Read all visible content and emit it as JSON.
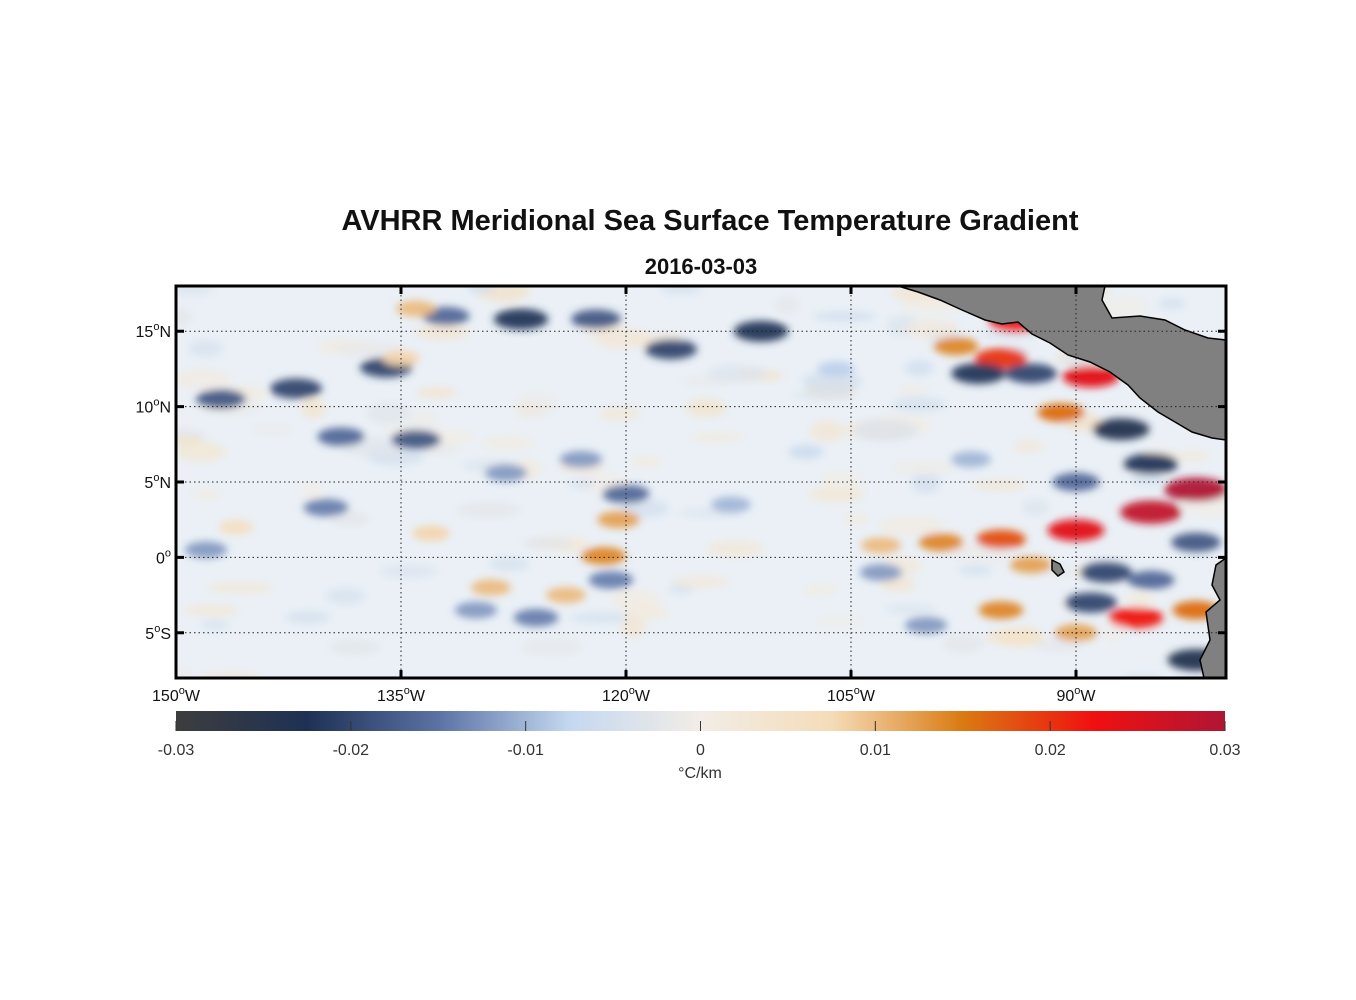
{
  "title": "AVHRR Meridional Sea Surface Temperature Gradient",
  "subtitle": "2016-03-03",
  "chart_data": {
    "type": "heatmap",
    "title": "AVHRR Meridional Sea Surface Temperature Gradient",
    "subtitle": "2016-03-03",
    "lon_range": [
      -150,
      -80
    ],
    "lat_range": [
      -8,
      18
    ],
    "x_ticks": [
      {
        "value": -150,
        "num": "150",
        "hemi": "W"
      },
      {
        "value": -135,
        "num": "135",
        "hemi": "W"
      },
      {
        "value": -120,
        "num": "120",
        "hemi": "W"
      },
      {
        "value": -105,
        "num": "105",
        "hemi": "W"
      },
      {
        "value": -90,
        "num": "90",
        "hemi": "W"
      }
    ],
    "y_ticks": [
      {
        "value": 15,
        "num": "15",
        "hemi": "N"
      },
      {
        "value": 10,
        "num": "10",
        "hemi": "N"
      },
      {
        "value": 5,
        "num": "5",
        "hemi": "N"
      },
      {
        "value": 0,
        "num": "0",
        "hemi": ""
      },
      {
        "value": -5,
        "num": "5",
        "hemi": "S"
      }
    ],
    "grid": true,
    "colorbar": {
      "min": -0.03,
      "max": 0.03,
      "ticks": [
        -0.03,
        -0.02,
        -0.01,
        0,
        0.01,
        0.02,
        0.03
      ],
      "tick_labels": [
        "-0.03",
        "-0.02",
        "-0.01",
        "0",
        "0.01",
        "0.02",
        "0.03"
      ],
      "label": "°C/km",
      "colors": [
        "#3d3d3d",
        "#1e3154",
        "#5b72a4",
        "#c4d8f0",
        "#f2ede6",
        "#f5dcb8",
        "#da7a12",
        "#f01010",
        "#b01535"
      ]
    },
    "land_color": "#808080",
    "features": [
      {
        "lon": -142,
        "lat": 11.2,
        "value": -0.02
      },
      {
        "lon": -147,
        "lat": 10.5,
        "value": -0.018
      },
      {
        "lon": -136,
        "lat": 12.6,
        "value": -0.02
      },
      {
        "lon": -132,
        "lat": 16.0,
        "value": -0.016
      },
      {
        "lon": -127,
        "lat": 15.8,
        "value": -0.022
      },
      {
        "lon": -122,
        "lat": 15.8,
        "value": -0.018
      },
      {
        "lon": -117,
        "lat": 13.8,
        "value": -0.02
      },
      {
        "lon": -111,
        "lat": 15.0,
        "value": -0.022
      },
      {
        "lon": -139,
        "lat": 8.0,
        "value": -0.016
      },
      {
        "lon": -134,
        "lat": 7.8,
        "value": -0.018
      },
      {
        "lon": -123,
        "lat": 6.5,
        "value": -0.012
      },
      {
        "lon": -128,
        "lat": 5.6,
        "value": -0.012
      },
      {
        "lon": -140,
        "lat": 3.3,
        "value": -0.014
      },
      {
        "lon": -148,
        "lat": 0.5,
        "value": -0.012
      },
      {
        "lon": -130,
        "lat": -3.5,
        "value": -0.012
      },
      {
        "lon": -126,
        "lat": -4.0,
        "value": -0.014
      },
      {
        "lon": -120,
        "lat": 4.2,
        "value": -0.016
      },
      {
        "lon": -121,
        "lat": -1.5,
        "value": -0.014
      },
      {
        "lon": -113,
        "lat": 3.5,
        "value": -0.01
      },
      {
        "lon": -120.5,
        "lat": 2.5,
        "value": 0.012
      },
      {
        "lon": -121.5,
        "lat": 0.1,
        "value": 0.014
      },
      {
        "lon": -133,
        "lat": 1.6,
        "value": 0.008
      },
      {
        "lon": -129,
        "lat": -2.0,
        "value": 0.01
      },
      {
        "lon": -124,
        "lat": -2.5,
        "value": 0.01
      },
      {
        "lon": -146,
        "lat": 2.0,
        "value": 0.006
      },
      {
        "lon": -135,
        "lat": 13.2,
        "value": 0.008
      },
      {
        "lon": -134,
        "lat": 16.5,
        "value": 0.01
      },
      {
        "lon": -98,
        "lat": 14.0,
        "value": 0.014
      },
      {
        "lon": -95,
        "lat": 13.2,
        "value": 0.02
      },
      {
        "lon": -94,
        "lat": 15.6,
        "value": 0.022
      },
      {
        "lon": -96.5,
        "lat": 12.2,
        "value": -0.022
      },
      {
        "lon": -93,
        "lat": 12.2,
        "value": -0.02
      },
      {
        "lon": -89,
        "lat": 12.0,
        "value": 0.024
      },
      {
        "lon": -91,
        "lat": 9.6,
        "value": 0.016
      },
      {
        "lon": -87,
        "lat": 8.5,
        "value": -0.024
      },
      {
        "lon": -85,
        "lat": 6.2,
        "value": -0.022
      },
      {
        "lon": -90,
        "lat": 5.0,
        "value": -0.016
      },
      {
        "lon": -82,
        "lat": 4.5,
        "value": 0.03
      },
      {
        "lon": -85,
        "lat": 3.0,
        "value": 0.028
      },
      {
        "lon": -90,
        "lat": 1.8,
        "value": 0.024
      },
      {
        "lon": -95,
        "lat": 1.2,
        "value": 0.018
      },
      {
        "lon": -99,
        "lat": 1.0,
        "value": 0.014
      },
      {
        "lon": -103,
        "lat": 0.8,
        "value": 0.01
      },
      {
        "lon": -93,
        "lat": -0.5,
        "value": 0.012
      },
      {
        "lon": -88,
        "lat": -1.0,
        "value": -0.02
      },
      {
        "lon": -85,
        "lat": -1.5,
        "value": -0.016
      },
      {
        "lon": -89,
        "lat": -3.0,
        "value": -0.02
      },
      {
        "lon": -86,
        "lat": -4.0,
        "value": 0.022
      },
      {
        "lon": -82,
        "lat": -3.5,
        "value": 0.016
      },
      {
        "lon": -90,
        "lat": -5.0,
        "value": 0.012
      },
      {
        "lon": -82,
        "lat": -6.8,
        "value": -0.024
      },
      {
        "lon": -95,
        "lat": -3.5,
        "value": 0.014
      },
      {
        "lon": -100,
        "lat": -4.5,
        "value": -0.012
      },
      {
        "lon": -103,
        "lat": -1.0,
        "value": -0.012
      },
      {
        "lon": -106,
        "lat": 12.5,
        "value": -0.008
      },
      {
        "lon": -108,
        "lat": 7.0,
        "value": -0.006
      },
      {
        "lon": -97,
        "lat": 6.5,
        "value": -0.01
      },
      {
        "lon": -82,
        "lat": 1.0,
        "value": -0.018
      }
    ]
  }
}
